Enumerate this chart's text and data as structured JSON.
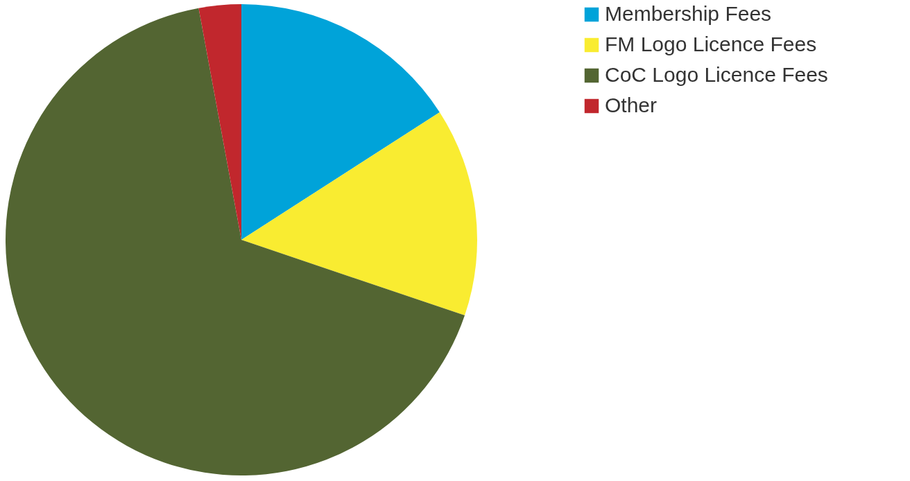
{
  "chart_data": {
    "type": "pie",
    "categories": [
      "Membership Fees",
      "FM Logo Licence Fees",
      "CoC Logo Licence Fees",
      "Other"
    ],
    "values": [
      15.9,
      14.3,
      66.9,
      2.9
    ],
    "colors": [
      "#00a3d9",
      "#f9ec31",
      "#536532",
      "#c1272d"
    ],
    "legend": "right"
  }
}
